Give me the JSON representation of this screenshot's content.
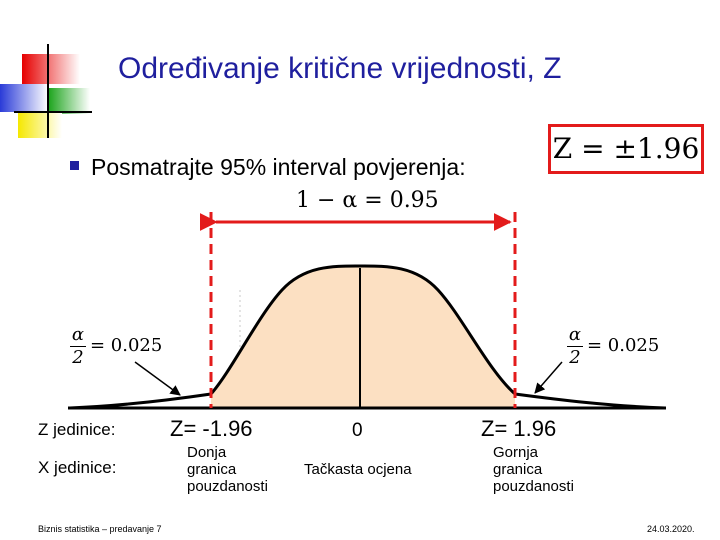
{
  "title": "Određivanje kritične vrijednosti, Z",
  "bullet_text": "Posmatrajte 95% interval povjerenja:",
  "z_formula": "Z = ±1.96",
  "confidence_formula": "1 − α = 0.95",
  "left_tail": {
    "numerator": "α",
    "denominator": "2",
    "value": "= 0.025"
  },
  "right_tail": {
    "numerator": "α",
    "denominator": "2",
    "value": "= 0.025"
  },
  "z_units_label": "Z jedinice:",
  "x_units_label": "X jedinice:",
  "z_left": "Z= -1.96",
  "z_center": "0",
  "z_right": "Z= 1.96",
  "lower_bound_label": [
    "Donja",
    "granica",
    "pouzdanosti"
  ],
  "point_estimate_label": "Tačkasta ocjena",
  "upper_bound_label": [
    "Gornja",
    "granica",
    "pouzdanosti"
  ],
  "footer_left": "Biznis statistika – predavanje 7",
  "footer_right": "24.03.2020.",
  "colors": {
    "title": "#1f1f9e",
    "accent_red": "#e31b1b",
    "curve_fill": "#fce0c2"
  }
}
